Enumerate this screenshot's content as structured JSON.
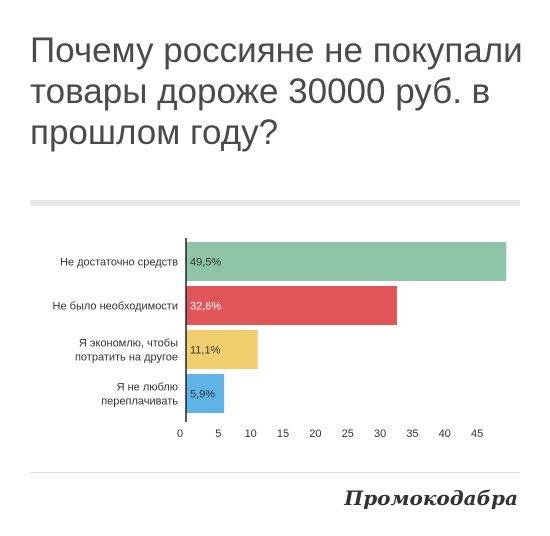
{
  "title": "Почему россияне не покупали товары дороже 30000 руб. в прошлом году?",
  "brand": "Промокодабра",
  "chart_data": {
    "type": "bar",
    "orientation": "horizontal",
    "categories": [
      [
        "Не достаточно средств"
      ],
      [
        "Не было необходимости"
      ],
      [
        "Я экономлю, чтобы",
        "потратить на другое"
      ],
      [
        "Я не люблю",
        "переплачивать"
      ]
    ],
    "values": [
      49.5,
      32.6,
      11.1,
      5.9
    ],
    "value_labels": [
      "49,5%",
      "32,6%",
      "11,1%",
      "5,9%"
    ],
    "colors": [
      "#8ec4a8",
      "#e05558",
      "#f2cf6e",
      "#5eb4e6"
    ],
    "value_label_colors": [
      "#333333",
      "#ffffff",
      "#333333",
      "#333333"
    ],
    "x_ticks": [
      0,
      5,
      10,
      15,
      20,
      25,
      30,
      35,
      40,
      45
    ],
    "xlim": [
      0,
      50
    ],
    "grid": false,
    "legend": false
  }
}
